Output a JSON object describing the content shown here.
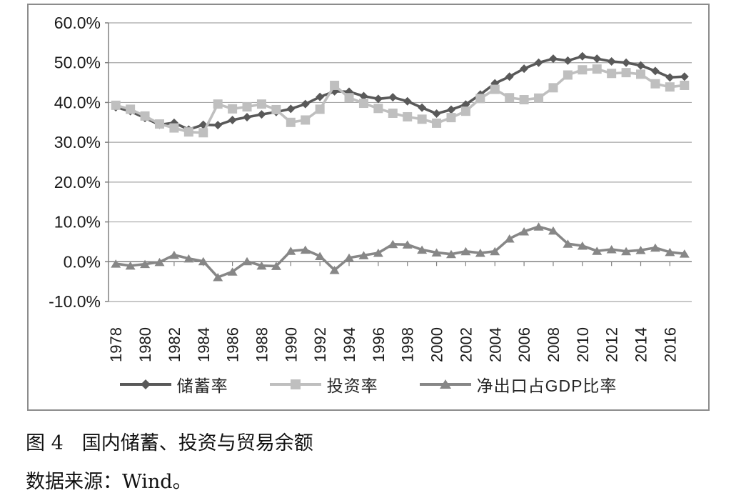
{
  "figure": {
    "caption_prefix": "图 4",
    "caption_title": "国内储蓄、投资与贸易余额",
    "source_text": "数据来源：Wind。"
  },
  "chart_data": {
    "type": "line",
    "x": [
      1978,
      1979,
      1980,
      1981,
      1982,
      1983,
      1984,
      1985,
      1986,
      1987,
      1988,
      1989,
      1990,
      1991,
      1992,
      1993,
      1994,
      1995,
      1996,
      1997,
      1998,
      1999,
      2000,
      2001,
      2002,
      2003,
      2004,
      2005,
      2006,
      2007,
      2008,
      2009,
      2010,
      2011,
      2012,
      2013,
      2014,
      2015,
      2016,
      2017
    ],
    "x_tick_labels": [
      "1978",
      "1980",
      "1982",
      "1984",
      "1986",
      "1988",
      "1990",
      "1992",
      "1994",
      "1996",
      "1998",
      "2000",
      "2002",
      "2004",
      "2006",
      "2008",
      "2010",
      "2012",
      "2014",
      "2016"
    ],
    "y_tick_labels": [
      "60.0%",
      "50.0%",
      "40.0%",
      "30.0%",
      "20.0%",
      "10.0%",
      "0.0%",
      "-10.0%"
    ],
    "y_ticks": [
      60,
      50,
      40,
      30,
      20,
      10,
      0,
      -10
    ],
    "ylim": [
      -10,
      60
    ],
    "y_unit": "percent",
    "grid": true,
    "legend_position": "bottom",
    "title": "",
    "xlabel": "",
    "ylabel": "",
    "series": [
      {
        "name": "储蓄率",
        "marker": "diamond",
        "color": "#595959",
        "values": [
          38.8,
          37.8,
          36.1,
          34.4,
          34.9,
          33.2,
          34.4,
          34.3,
          35.6,
          36.3,
          37.0,
          37.6,
          38.4,
          39.6,
          41.4,
          42.8,
          42.7,
          41.6,
          40.9,
          41.3,
          40.3,
          38.7,
          37.2,
          38.2,
          39.5,
          42.0,
          44.8,
          46.5,
          48.5,
          50.0,
          51.0,
          50.5,
          51.6,
          51.0,
          50.3,
          50.0,
          49.3,
          47.9,
          46.3,
          46.5
        ]
      },
      {
        "name": "投资率",
        "marker": "square",
        "color": "#bfbfbf",
        "values": [
          39.3,
          38.3,
          36.6,
          34.6,
          33.6,
          32.6,
          32.4,
          39.6,
          38.4,
          38.9,
          39.6,
          38.2,
          35.0,
          35.6,
          38.3,
          44.3,
          41.2,
          39.8,
          38.5,
          37.3,
          36.4,
          35.8,
          34.8,
          36.2,
          37.8,
          41.0,
          43.3,
          41.2,
          40.7,
          41.1,
          43.7,
          46.9,
          48.2,
          48.4,
          47.3,
          47.5,
          47.1,
          44.7,
          43.9,
          44.3
        ]
      },
      {
        "name": "净出口占GDP比率",
        "marker": "triangle",
        "color": "#878787",
        "values": [
          -0.5,
          -1.0,
          -0.6,
          -0.1,
          1.7,
          0.8,
          0.1,
          -3.9,
          -2.5,
          0.1,
          -1.0,
          -1.1,
          2.7,
          3.0,
          1.4,
          -2.1,
          1.0,
          1.6,
          2.2,
          4.4,
          4.3,
          3.0,
          2.3,
          1.9,
          2.6,
          2.2,
          2.6,
          5.8,
          7.6,
          8.8,
          7.8,
          4.5,
          4.0,
          2.7,
          3.1,
          2.6,
          2.9,
          3.5,
          2.4,
          2.0
        ]
      }
    ],
    "style": {
      "grid_color": "#a6a6a6",
      "axis_color": "#808080",
      "tick_text_color": "#1a1a1a"
    }
  }
}
